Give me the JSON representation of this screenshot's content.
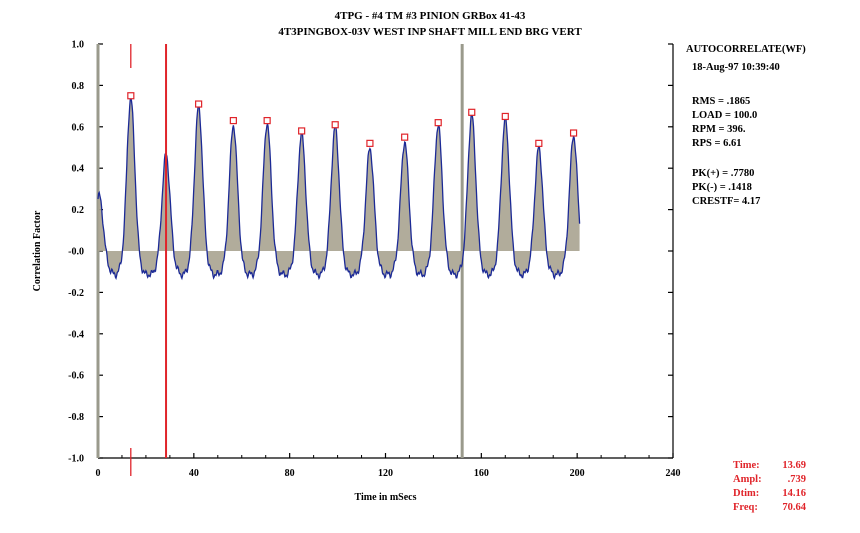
{
  "header": {
    "title_line1": "4TPG - #4 TM #3 PINION GRBox 41-43",
    "title_line2": "4T3PINGBOX-03V   WEST INP SHAFT MILL END BRG VERT"
  },
  "info_panel": {
    "mode": "AUTOCORRELATE(WF)",
    "datetime": "18-Aug-97  10:39:40",
    "rms": "RMS =  .1865",
    "load": "LOAD = 100.0",
    "rpm": "RPM =  396.",
    "rps": "RPS =   6.61",
    "pk_plus": "PK(+) = .7780",
    "pk_minus": "PK(-) = .1418",
    "crest": "CRESTF= 4.17"
  },
  "cursor_readout": {
    "time_label": "Time:",
    "time_value": "13.69",
    "ampl_label": "Ampl:",
    "ampl_value": ".739",
    "dtim_label": "Dtim:",
    "dtim_value": "14.16",
    "freq_label": "Freq:",
    "freq_value": "70.64"
  },
  "colors": {
    "trace": "#1c2a96",
    "fill": "#a8a390",
    "cursor": "#e0242a",
    "marker_line": "#9a9a8c",
    "peak_marker": "#e0242a"
  },
  "chart_data": {
    "type": "line",
    "title": "4TPG - #4 TM #3 PINION GRBox 41-43",
    "subtitle": "4T3PINGBOX-03V   WEST INP SHAFT MILL END BRG VERT",
    "xlabel": "Time in mSecs",
    "ylabel": "Correlation Factor",
    "xlim": [
      0,
      240
    ],
    "ylim": [
      -1.0,
      1.0
    ],
    "x_ticks": [
      0,
      40,
      80,
      120,
      160,
      200,
      240
    ],
    "x_tick_labels": [
      "0",
      "40",
      "80",
      "120",
      "160",
      "200",
      "240"
    ],
    "y_ticks": [
      1.0,
      0.8,
      0.6,
      0.4,
      0.2,
      0.0,
      -0.2,
      -0.4,
      -0.6,
      -0.8,
      -1.0
    ],
    "y_tick_labels": [
      "1.0",
      "0.8",
      "0.6",
      "0.4",
      "0.2",
      "-0.0",
      "-0.2",
      "-0.4",
      "-0.6",
      "-0.8",
      "-1.0"
    ],
    "grid": false,
    "baseline": -0.05,
    "trough": -0.12,
    "trace_end_x": 201,
    "peak_width_ms": 1.7,
    "peaks": [
      {
        "x": 0.5,
        "y": 0.27
      },
      {
        "x": 13.7,
        "y": 0.739
      },
      {
        "x": 28.4,
        "y": 0.47
      },
      {
        "x": 42.0,
        "y": 0.7
      },
      {
        "x": 56.5,
        "y": 0.61
      },
      {
        "x": 70.6,
        "y": 0.62
      },
      {
        "x": 85.0,
        "y": 0.57
      },
      {
        "x": 99.0,
        "y": 0.6
      },
      {
        "x": 113.5,
        "y": 0.5
      },
      {
        "x": 128.0,
        "y": 0.53
      },
      {
        "x": 142.0,
        "y": 0.61
      },
      {
        "x": 156.0,
        "y": 0.66
      },
      {
        "x": 170.0,
        "y": 0.64
      },
      {
        "x": 184.0,
        "y": 0.5
      },
      {
        "x": 198.5,
        "y": 0.56
      }
    ],
    "peak_markers": [
      {
        "x": 13.7,
        "y": 0.75
      },
      {
        "x": 42.0,
        "y": 0.71
      },
      {
        "x": 56.5,
        "y": 0.63
      },
      {
        "x": 70.6,
        "y": 0.63
      },
      {
        "x": 85.0,
        "y": 0.58
      },
      {
        "x": 99.0,
        "y": 0.61
      },
      {
        "x": 113.5,
        "y": 0.52
      },
      {
        "x": 128.0,
        "y": 0.55
      },
      {
        "x": 142.0,
        "y": 0.62
      },
      {
        "x": 156.0,
        "y": 0.67
      },
      {
        "x": 170.0,
        "y": 0.65
      },
      {
        "x": 184.0,
        "y": 0.52
      },
      {
        "x": 198.5,
        "y": 0.57
      }
    ],
    "cursor_x": 13.69,
    "delta_cursor_x": 28.4,
    "marker_lines_x": [
      0,
      152
    ]
  }
}
